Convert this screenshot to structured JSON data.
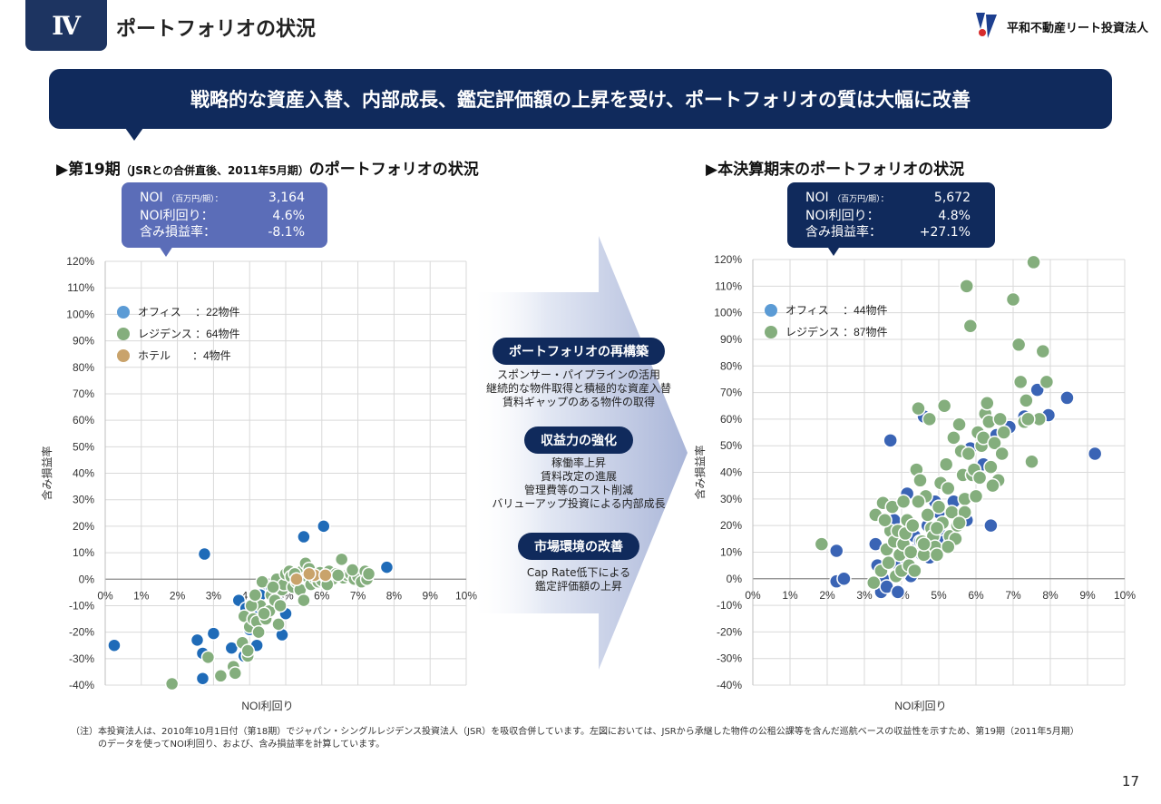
{
  "header": {
    "section_number": "Ⅳ",
    "section_title": "ポートフォリオの状況",
    "company_name": "平和不動産リート投資法人"
  },
  "banner": {
    "text": "戦略的な資産入替、内部成長、鑑定評価額の上昇を受け、ポートフォリオの質は大幅に改善"
  },
  "left": {
    "subtitle_main": "▶第19期",
    "subtitle_paren": "（JSRとの合併直後、2011年5月期）",
    "subtitle_tail": "のポートフォリオの状況",
    "bubble": {
      "noi_label": "NOI",
      "noi_unit": "（百万円/期）：",
      "noi_value": "3,164",
      "yield_label": "NOI利回り：",
      "yield_value": "4.6%",
      "gain_label": "含み損益率：",
      "gain_value": "-8.1%"
    }
  },
  "right": {
    "subtitle": "▶本決算期末のポートフォリオの状況",
    "bubble": {
      "noi_label": "NOI",
      "noi_unit": "（百万円/期）：",
      "noi_value": "5,672",
      "yield_label": "NOI利回り：",
      "yield_value": "4.8%",
      "gain_label": "含み損益率：",
      "gain_value": "+27.1%"
    }
  },
  "center": {
    "pill1": "ポートフォリオの再構築",
    "text1": [
      "スポンサー・パイプラインの活用",
      "継続的な物件取得と積極的な資産入替",
      "賃料ギャップのある物件の取得"
    ],
    "pill2": "収益力の強化",
    "text2": [
      "稼働率上昇",
      "賃料改定の進展",
      "管理費等のコスト削減",
      "バリューアップ投資による内部成長"
    ],
    "pill3": "市場環境の改善",
    "text3": [
      "Cap Rate低下による",
      "鑑定評価額の上昇"
    ]
  },
  "note": {
    "line1": "（注）本投資法人は、2010年10月1日付（第18期）でジャパン・シングルレジデンス投資法人（JSR）を吸収合併しています。左図においては、JSRから承継した物件の公租公課等を含んだ巡航ベースの収益性を示すため、第19期（2011年5月期）",
    "line2": "のデータを使ってNOI利回り、および、含み損益率を計算しています。"
  },
  "page_number": "17",
  "colors": {
    "navy": "#102a5c",
    "left_bubble": "#5b6db8",
    "right_bubble": "#102a5c",
    "office_left": "#1f6bb8",
    "office_right": "#3a64b5",
    "office_legend": "#5b9bd5",
    "residence": "#84ae7d",
    "hotel": "#c9a36b"
  },
  "chart_data": [
    {
      "type": "scatter",
      "xlabel": "NOI利回り",
      "ylabel": "含み損益率",
      "xlim": [
        0,
        10
      ],
      "ylim": [
        -40,
        120
      ],
      "x_ticks": [
        "0%",
        "1%",
        "2%",
        "3%",
        "4%",
        "5%",
        "6%",
        "7%",
        "8%",
        "9%",
        "10%"
      ],
      "y_ticks": [
        "120%",
        "110%",
        "100%",
        "90%",
        "80%",
        "70%",
        "60%",
        "50%",
        "40%",
        "30%",
        "20%",
        "10%",
        "0%",
        "-10%",
        "-20%",
        "-30%",
        "-40%"
      ],
      "grid": true,
      "legend_position": "top-left",
      "series": [
        {
          "name": "オフィス",
          "legend_label": "オフィス　 ：22物件",
          "color": "#1f6bb8",
          "points": [
            [
              0.25,
              -25
            ],
            [
              2.75,
              9.5
            ],
            [
              2.55,
              -23
            ],
            [
              2.7,
              -28
            ],
            [
              3.0,
              -20.5
            ],
            [
              2.7,
              -37.5
            ],
            [
              3.5,
              -26
            ],
            [
              3.7,
              -8
            ],
            [
              3.9,
              -11
            ],
            [
              4.0,
              -19
            ],
            [
              4.2,
              -25
            ],
            [
              4.4,
              -5
            ],
            [
              4.6,
              -3
            ],
            [
              4.8,
              -9
            ],
            [
              4.9,
              -21
            ],
            [
              5.0,
              -13
            ],
            [
              5.5,
              16
            ],
            [
              6.05,
              20
            ],
            [
              7.8,
              4.5
            ],
            [
              4.1,
              -12
            ],
            [
              3.85,
              -29
            ],
            [
              4.3,
              -6
            ]
          ]
        },
        {
          "name": "レジデンス",
          "legend_label": "レジデンス ：64物件",
          "color": "#84ae7d",
          "points": [
            [
              1.85,
              -39.5
            ],
            [
              2.85,
              -29.5
            ],
            [
              3.2,
              -36.5
            ],
            [
              3.55,
              -33
            ],
            [
              3.6,
              -35.5
            ],
            [
              3.8,
              -24
            ],
            [
              3.85,
              -14
            ],
            [
              3.95,
              -29
            ],
            [
              4.0,
              -18
            ],
            [
              4.1,
              -15
            ],
            [
              4.2,
              -16
            ],
            [
              4.3,
              -10
            ],
            [
              4.35,
              -1
            ],
            [
              4.45,
              -15
            ],
            [
              4.55,
              -12
            ],
            [
              4.6,
              -6
            ],
            [
              4.7,
              -8
            ],
            [
              4.75,
              0
            ],
            [
              4.85,
              -10
            ],
            [
              4.8,
              -17
            ],
            [
              4.9,
              -4
            ],
            [
              4.95,
              -2
            ],
            [
              5.0,
              2
            ],
            [
              5.1,
              3
            ],
            [
              5.15,
              1
            ],
            [
              5.2,
              -3
            ],
            [
              5.3,
              -1
            ],
            [
              5.35,
              0.5
            ],
            [
              5.4,
              -4
            ],
            [
              5.45,
              3
            ],
            [
              5.5,
              -8
            ],
            [
              5.55,
              6
            ],
            [
              5.6,
              1
            ],
            [
              5.7,
              -2
            ],
            [
              5.75,
              3
            ],
            [
              5.8,
              0.5
            ],
            [
              5.9,
              -1
            ],
            [
              5.95,
              2.5
            ],
            [
              6.0,
              -0.5
            ],
            [
              6.1,
              1
            ],
            [
              6.2,
              3
            ],
            [
              6.3,
              0
            ],
            [
              6.4,
              2
            ],
            [
              6.55,
              7.5
            ],
            [
              6.6,
              0.5
            ],
            [
              6.7,
              1.5
            ],
            [
              6.8,
              2
            ],
            [
              6.9,
              0
            ],
            [
              7.0,
              1
            ],
            [
              7.1,
              -1
            ],
            [
              7.2,
              3
            ],
            [
              7.25,
              0
            ],
            [
              4.05,
              -10
            ],
            [
              4.15,
              -6
            ],
            [
              4.4,
              -13
            ],
            [
              4.25,
              -20
            ],
            [
              3.95,
              -27
            ],
            [
              4.65,
              -3
            ],
            [
              5.25,
              2
            ],
            [
              5.65,
              4
            ],
            [
              6.15,
              -2
            ],
            [
              6.45,
              1.5
            ],
            [
              6.85,
              3.5
            ],
            [
              7.3,
              2
            ]
          ]
        },
        {
          "name": "ホテル",
          "legend_label": "ホテル　　：4物件",
          "color": "#c9a36b",
          "points": [
            [
              5.3,
              0
            ],
            [
              5.8,
              1.5
            ],
            [
              6.1,
              1.5
            ],
            [
              5.65,
              2
            ]
          ]
        }
      ]
    },
    {
      "type": "scatter",
      "xlabel": "NOI利回り",
      "ylabel": "含み損益率",
      "xlim": [
        0,
        10
      ],
      "ylim": [
        -40,
        120
      ],
      "x_ticks": [
        "0%",
        "1%",
        "2%",
        "3%",
        "4%",
        "5%",
        "6%",
        "7%",
        "8%",
        "9%",
        "10%"
      ],
      "y_ticks": [
        "120%",
        "110%",
        "100%",
        "90%",
        "80%",
        "70%",
        "60%",
        "50%",
        "40%",
        "30%",
        "20%",
        "10%",
        "0%",
        "-10%",
        "-20%",
        "-30%",
        "-40%"
      ],
      "grid": true,
      "legend_position": "top-left",
      "series": [
        {
          "name": "オフィス",
          "legend_label": "オフィス　 ：44物件",
          "color": "#3a64b5",
          "points": [
            [
              2.25,
              -1
            ],
            [
              2.45,
              0
            ],
            [
              2.25,
              10.5
            ],
            [
              3.3,
              13
            ],
            [
              3.35,
              5
            ],
            [
              3.45,
              -5
            ],
            [
              3.5,
              0
            ],
            [
              3.6,
              -3
            ],
            [
              3.7,
              52
            ],
            [
              3.8,
              22
            ],
            [
              3.85,
              6
            ],
            [
              3.9,
              -5
            ],
            [
              4.0,
              13
            ],
            [
              4.1,
              8
            ],
            [
              4.15,
              32
            ],
            [
              4.25,
              1
            ],
            [
              4.35,
              16
            ],
            [
              4.4,
              11
            ],
            [
              4.5,
              14
            ],
            [
              4.55,
              9
            ],
            [
              4.6,
              61
            ],
            [
              4.65,
              31
            ],
            [
              4.7,
              20
            ],
            [
              4.75,
              8
            ],
            [
              4.85,
              18
            ],
            [
              4.9,
              29
            ],
            [
              4.95,
              11
            ],
            [
              5.0,
              25
            ],
            [
              5.1,
              16
            ],
            [
              5.15,
              14
            ],
            [
              5.3,
              13
            ],
            [
              5.4,
              29
            ],
            [
              5.75,
              22
            ],
            [
              5.85,
              49
            ],
            [
              6.2,
              43
            ],
            [
              6.4,
              20
            ],
            [
              6.55,
              54
            ],
            [
              6.9,
              57
            ],
            [
              7.3,
              61
            ],
            [
              7.65,
              71
            ],
            [
              7.95,
              61.5
            ],
            [
              8.45,
              68
            ],
            [
              9.2,
              47
            ],
            [
              3.95,
              2
            ]
          ]
        },
        {
          "name": "レジデンス",
          "legend_label": "レジデンス ：87物件",
          "color": "#84ae7d",
          "points": [
            [
              1.85,
              13
            ],
            [
              3.25,
              -1.5
            ],
            [
              3.3,
              24
            ],
            [
              3.45,
              3
            ],
            [
              3.5,
              28.5
            ],
            [
              3.6,
              11
            ],
            [
              3.65,
              6
            ],
            [
              3.7,
              18
            ],
            [
              3.75,
              27
            ],
            [
              3.8,
              14
            ],
            [
              3.85,
              1
            ],
            [
              3.9,
              18
            ],
            [
              3.95,
              9
            ],
            [
              4.0,
              3
            ],
            [
              4.05,
              13
            ],
            [
              4.1,
              17
            ],
            [
              4.15,
              22
            ],
            [
              4.2,
              5
            ],
            [
              4.25,
              10
            ],
            [
              4.3,
              20
            ],
            [
              4.35,
              3
            ],
            [
              4.4,
              41
            ],
            [
              4.45,
              64
            ],
            [
              4.5,
              37
            ],
            [
              4.55,
              14
            ],
            [
              4.6,
              9
            ],
            [
              4.65,
              31
            ],
            [
              4.7,
              24
            ],
            [
              4.75,
              60
            ],
            [
              4.8,
              19
            ],
            [
              4.85,
              16
            ],
            [
              4.9,
              12
            ],
            [
              4.95,
              9
            ],
            [
              5.0,
              27
            ],
            [
              5.05,
              36
            ],
            [
              5.1,
              21
            ],
            [
              5.15,
              65
            ],
            [
              5.2,
              43
            ],
            [
              5.25,
              34
            ],
            [
              5.3,
              16
            ],
            [
              5.35,
              25
            ],
            [
              5.4,
              53
            ],
            [
              5.45,
              15
            ],
            [
              5.5,
              20
            ],
            [
              5.55,
              58
            ],
            [
              5.6,
              48
            ],
            [
              5.65,
              39
            ],
            [
              5.7,
              30
            ],
            [
              5.75,
              110
            ],
            [
              5.8,
              47
            ],
            [
              5.85,
              95
            ],
            [
              5.9,
              39
            ],
            [
              5.95,
              41
            ],
            [
              6.05,
              55
            ],
            [
              6.1,
              38
            ],
            [
              6.15,
              50
            ],
            [
              6.2,
              53
            ],
            [
              6.25,
              62
            ],
            [
              6.3,
              66
            ],
            [
              6.35,
              59
            ],
            [
              6.4,
              42
            ],
            [
              6.5,
              51
            ],
            [
              6.6,
              37
            ],
            [
              6.7,
              47
            ],
            [
              6.75,
              55
            ],
            [
              7.0,
              105
            ],
            [
              7.15,
              88
            ],
            [
              7.2,
              74
            ],
            [
              7.3,
              59
            ],
            [
              7.35,
              67
            ],
            [
              7.5,
              44
            ],
            [
              7.55,
              119
            ],
            [
              7.7,
              60
            ],
            [
              7.8,
              85.5
            ],
            [
              7.9,
              74
            ],
            [
              3.55,
              22
            ],
            [
              4.05,
              29
            ],
            [
              4.45,
              29
            ],
            [
              4.95,
              19
            ],
            [
              5.25,
              12
            ],
            [
              5.7,
              25
            ],
            [
              6.0,
              31
            ],
            [
              6.45,
              35
            ],
            [
              6.65,
              60
            ],
            [
              7.4,
              60
            ],
            [
              5.55,
              21
            ],
            [
              4.6,
              13
            ]
          ]
        }
      ]
    }
  ]
}
